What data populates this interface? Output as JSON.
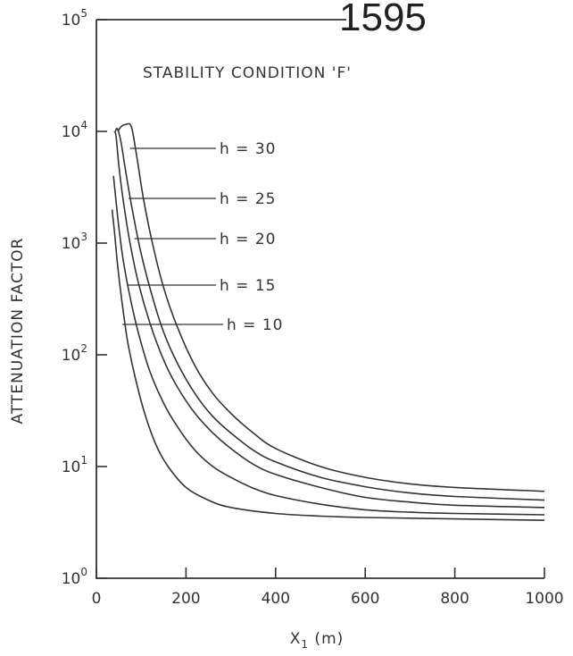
{
  "page_number": "1595",
  "chart_data": {
    "type": "line",
    "title": "STABILITY CONDITION 'F'",
    "xlabel": "X1 (m)",
    "ylabel": "ATTENUATION FACTOR",
    "xlim": [
      0,
      1000
    ],
    "ylim": [
      1,
      100000
    ],
    "yscale": "log",
    "x_ticks": [
      0,
      200,
      400,
      600,
      800,
      1000
    ],
    "x_tick_labels": [
      "0",
      "200",
      "400",
      "600",
      "800",
      "1000"
    ],
    "y_ticks": [
      1,
      10,
      100,
      1000,
      10000,
      100000
    ],
    "y_tick_labels": [
      {
        "base": "10",
        "exp": "0"
      },
      {
        "base": "10",
        "exp": "1"
      },
      {
        "base": "10",
        "exp": "2"
      },
      {
        "base": "10",
        "exp": "3"
      },
      {
        "base": "10",
        "exp": "4"
      },
      {
        "base": "10",
        "exp": "5"
      }
    ],
    "grid": false,
    "series": [
      {
        "name": "h=30",
        "points": [
          [
            48,
            10000
          ],
          [
            55,
            11000
          ],
          [
            65,
            11500
          ],
          [
            78,
            11000
          ],
          [
            90,
            6000
          ],
          [
            105,
            2500
          ],
          [
            125,
            1000
          ],
          [
            150,
            400
          ],
          [
            180,
            180
          ],
          [
            220,
            80
          ],
          [
            260,
            45
          ],
          [
            300,
            30
          ],
          [
            350,
            20
          ],
          [
            400,
            14.5
          ],
          [
            500,
            10
          ],
          [
            600,
            8
          ],
          [
            700,
            7
          ],
          [
            800,
            6.5
          ],
          [
            1000,
            6
          ]
        ],
        "label_point": [
          75,
          5500
        ]
      },
      {
        "name": "h=25",
        "points": [
          [
            42,
            10000
          ],
          [
            47,
            10500
          ],
          [
            55,
            8000
          ],
          [
            65,
            4500
          ],
          [
            80,
            2000
          ],
          [
            100,
            800
          ],
          [
            125,
            330
          ],
          [
            150,
            160
          ],
          [
            180,
            85
          ],
          [
            220,
            45
          ],
          [
            260,
            28
          ],
          [
            300,
            20
          ],
          [
            350,
            14
          ],
          [
            400,
            11
          ],
          [
            500,
            8
          ],
          [
            600,
            6.6
          ],
          [
            700,
            5.8
          ],
          [
            800,
            5.4
          ],
          [
            1000,
            5
          ]
        ],
        "label_point": [
          72,
          2600
        ]
      },
      {
        "name": "h=20",
        "points": [
          [
            40,
            10000
          ],
          [
            44,
            9000
          ],
          [
            50,
            5000
          ],
          [
            60,
            2400
          ],
          [
            75,
            1000
          ],
          [
            95,
            420
          ],
          [
            120,
            190
          ],
          [
            150,
            90
          ],
          [
            180,
            52
          ],
          [
            220,
            30
          ],
          [
            260,
            20
          ],
          [
            300,
            14.5
          ],
          [
            350,
            10.5
          ],
          [
            400,
            8.5
          ],
          [
            500,
            6.5
          ],
          [
            600,
            5.3
          ],
          [
            700,
            4.8
          ],
          [
            800,
            4.5
          ],
          [
            1000,
            4.3
          ]
        ],
        "label_point": [
          85,
          1200
        ]
      },
      {
        "name": "h=15",
        "points": [
          [
            38,
            4000
          ],
          [
            42,
            2800
          ],
          [
            50,
            1400
          ],
          [
            60,
            700
          ],
          [
            75,
            330
          ],
          [
            95,
            150
          ],
          [
            120,
            70
          ],
          [
            150,
            37
          ],
          [
            180,
            23
          ],
          [
            220,
            14
          ],
          [
            260,
            10
          ],
          [
            300,
            8
          ],
          [
            350,
            6.4
          ],
          [
            400,
            5.5
          ],
          [
            500,
            4.6
          ],
          [
            600,
            4.1
          ],
          [
            700,
            3.9
          ],
          [
            800,
            3.8
          ],
          [
            1000,
            3.7
          ]
        ],
        "label_point": [
          70,
          420
        ]
      },
      {
        "name": "h=10",
        "points": [
          [
            35,
            2000
          ],
          [
            40,
            1300
          ],
          [
            48,
            600
          ],
          [
            58,
            280
          ],
          [
            70,
            130
          ],
          [
            90,
            55
          ],
          [
            110,
            28
          ],
          [
            135,
            15
          ],
          [
            160,
            10
          ],
          [
            200,
            6.5
          ],
          [
            250,
            5
          ],
          [
            300,
            4.3
          ],
          [
            400,
            3.8
          ],
          [
            500,
            3.6
          ],
          [
            600,
            3.5
          ],
          [
            800,
            3.4
          ],
          [
            1000,
            3.3
          ]
        ],
        "label_point": [
          58,
          180
        ]
      }
    ]
  }
}
